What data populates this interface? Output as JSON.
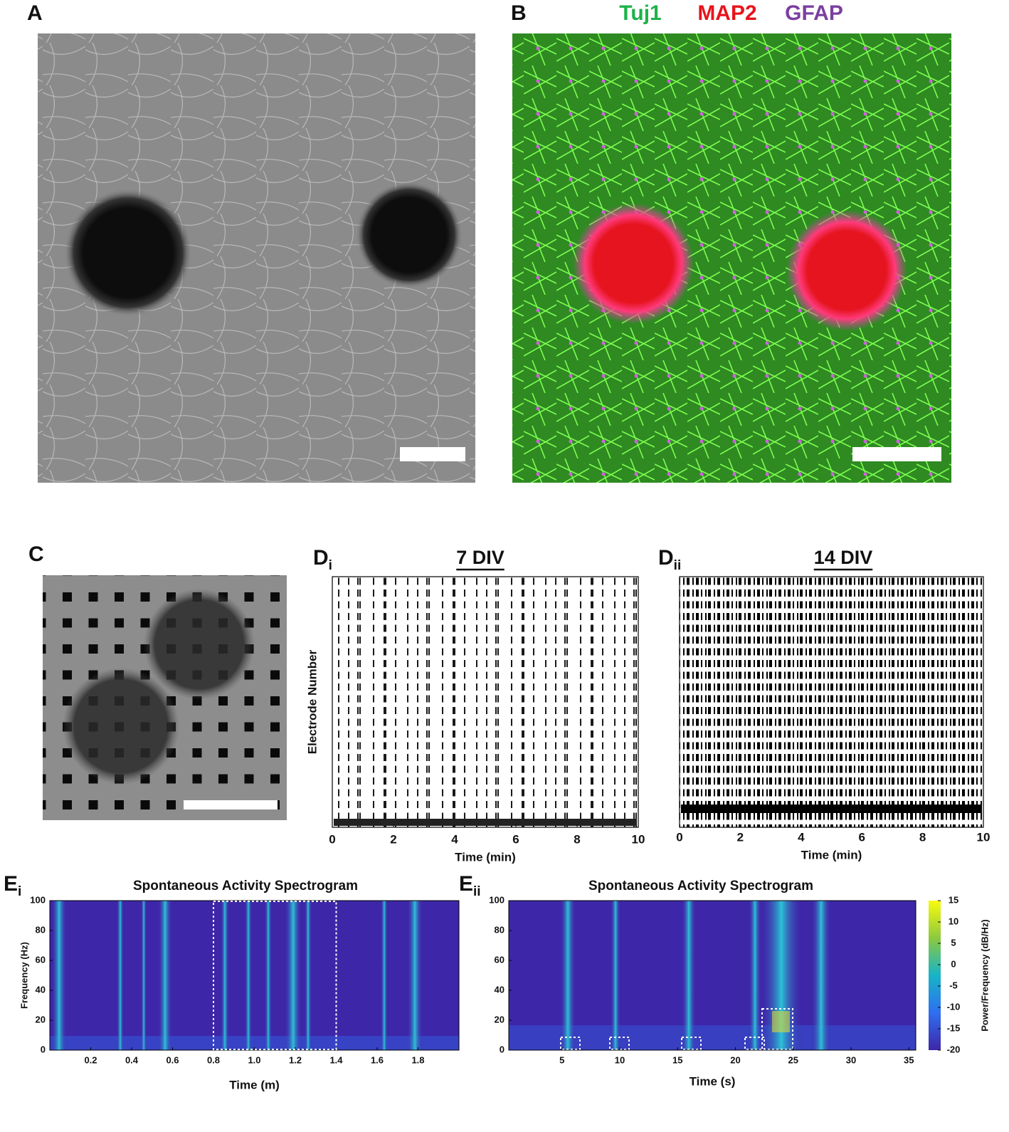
{
  "panels": {
    "A": {
      "label": "A"
    },
    "B": {
      "label": "B",
      "stains": [
        {
          "name": "Tuj1",
          "color": "#1db34a"
        },
        {
          "name": "MAP2",
          "color": "#e8141c"
        },
        {
          "name": "GFAP",
          "color": "#7b3fa0"
        }
      ]
    },
    "C": {
      "label": "C"
    },
    "Di": {
      "label": "D",
      "subscript": "i",
      "title": "7 DIV",
      "ylabel": "Electrode Number",
      "xlabel": "Time (min)",
      "xlim": [
        0,
        10
      ],
      "xticks": [
        0,
        2,
        4,
        6,
        8,
        10
      ]
    },
    "Dii": {
      "label": "D",
      "subscript": "ii",
      "title": "14 DIV",
      "xlabel": "Time (min)",
      "xlim": [
        0,
        10
      ],
      "xticks": [
        0,
        2,
        4,
        6,
        8,
        10
      ]
    },
    "Ei": {
      "label": "E",
      "subscript": "i",
      "title": "Spontaneous Activity Spectrogram",
      "xlabel": "Time (m)",
      "ylabel": "Frequency (Hz)",
      "xlim": [
        0,
        2
      ],
      "xticks": [
        0.2,
        0.4,
        0.6,
        0.8,
        {
          "value": 1,
          "label": "1.0"
        },
        1.2,
        1.4,
        1.6,
        1.8
      ],
      "ylim": [
        0,
        100
      ],
      "yticks": [
        0,
        20,
        40,
        60,
        80,
        100
      ],
      "highlight": [
        0.8,
        1.4
      ]
    },
    "Eii": {
      "label": "E",
      "subscript": "ii",
      "title": "Spontaneous Activity Spectrogram",
      "xlabel": "Time (s)",
      "xlim": [
        0.4,
        35.6
      ],
      "xticks": [
        5,
        10,
        15,
        20,
        25,
        30,
        35
      ],
      "ylim": [
        0,
        100
      ],
      "yticks": [
        0,
        20,
        40,
        60,
        80,
        100
      ],
      "colorbar": {
        "label": "Power/Frequency (dB/Hz)",
        "lim": [
          -20,
          15
        ],
        "ticks": [
          15,
          10,
          5,
          0,
          -5,
          -10,
          -15,
          -20
        ]
      }
    }
  }
}
